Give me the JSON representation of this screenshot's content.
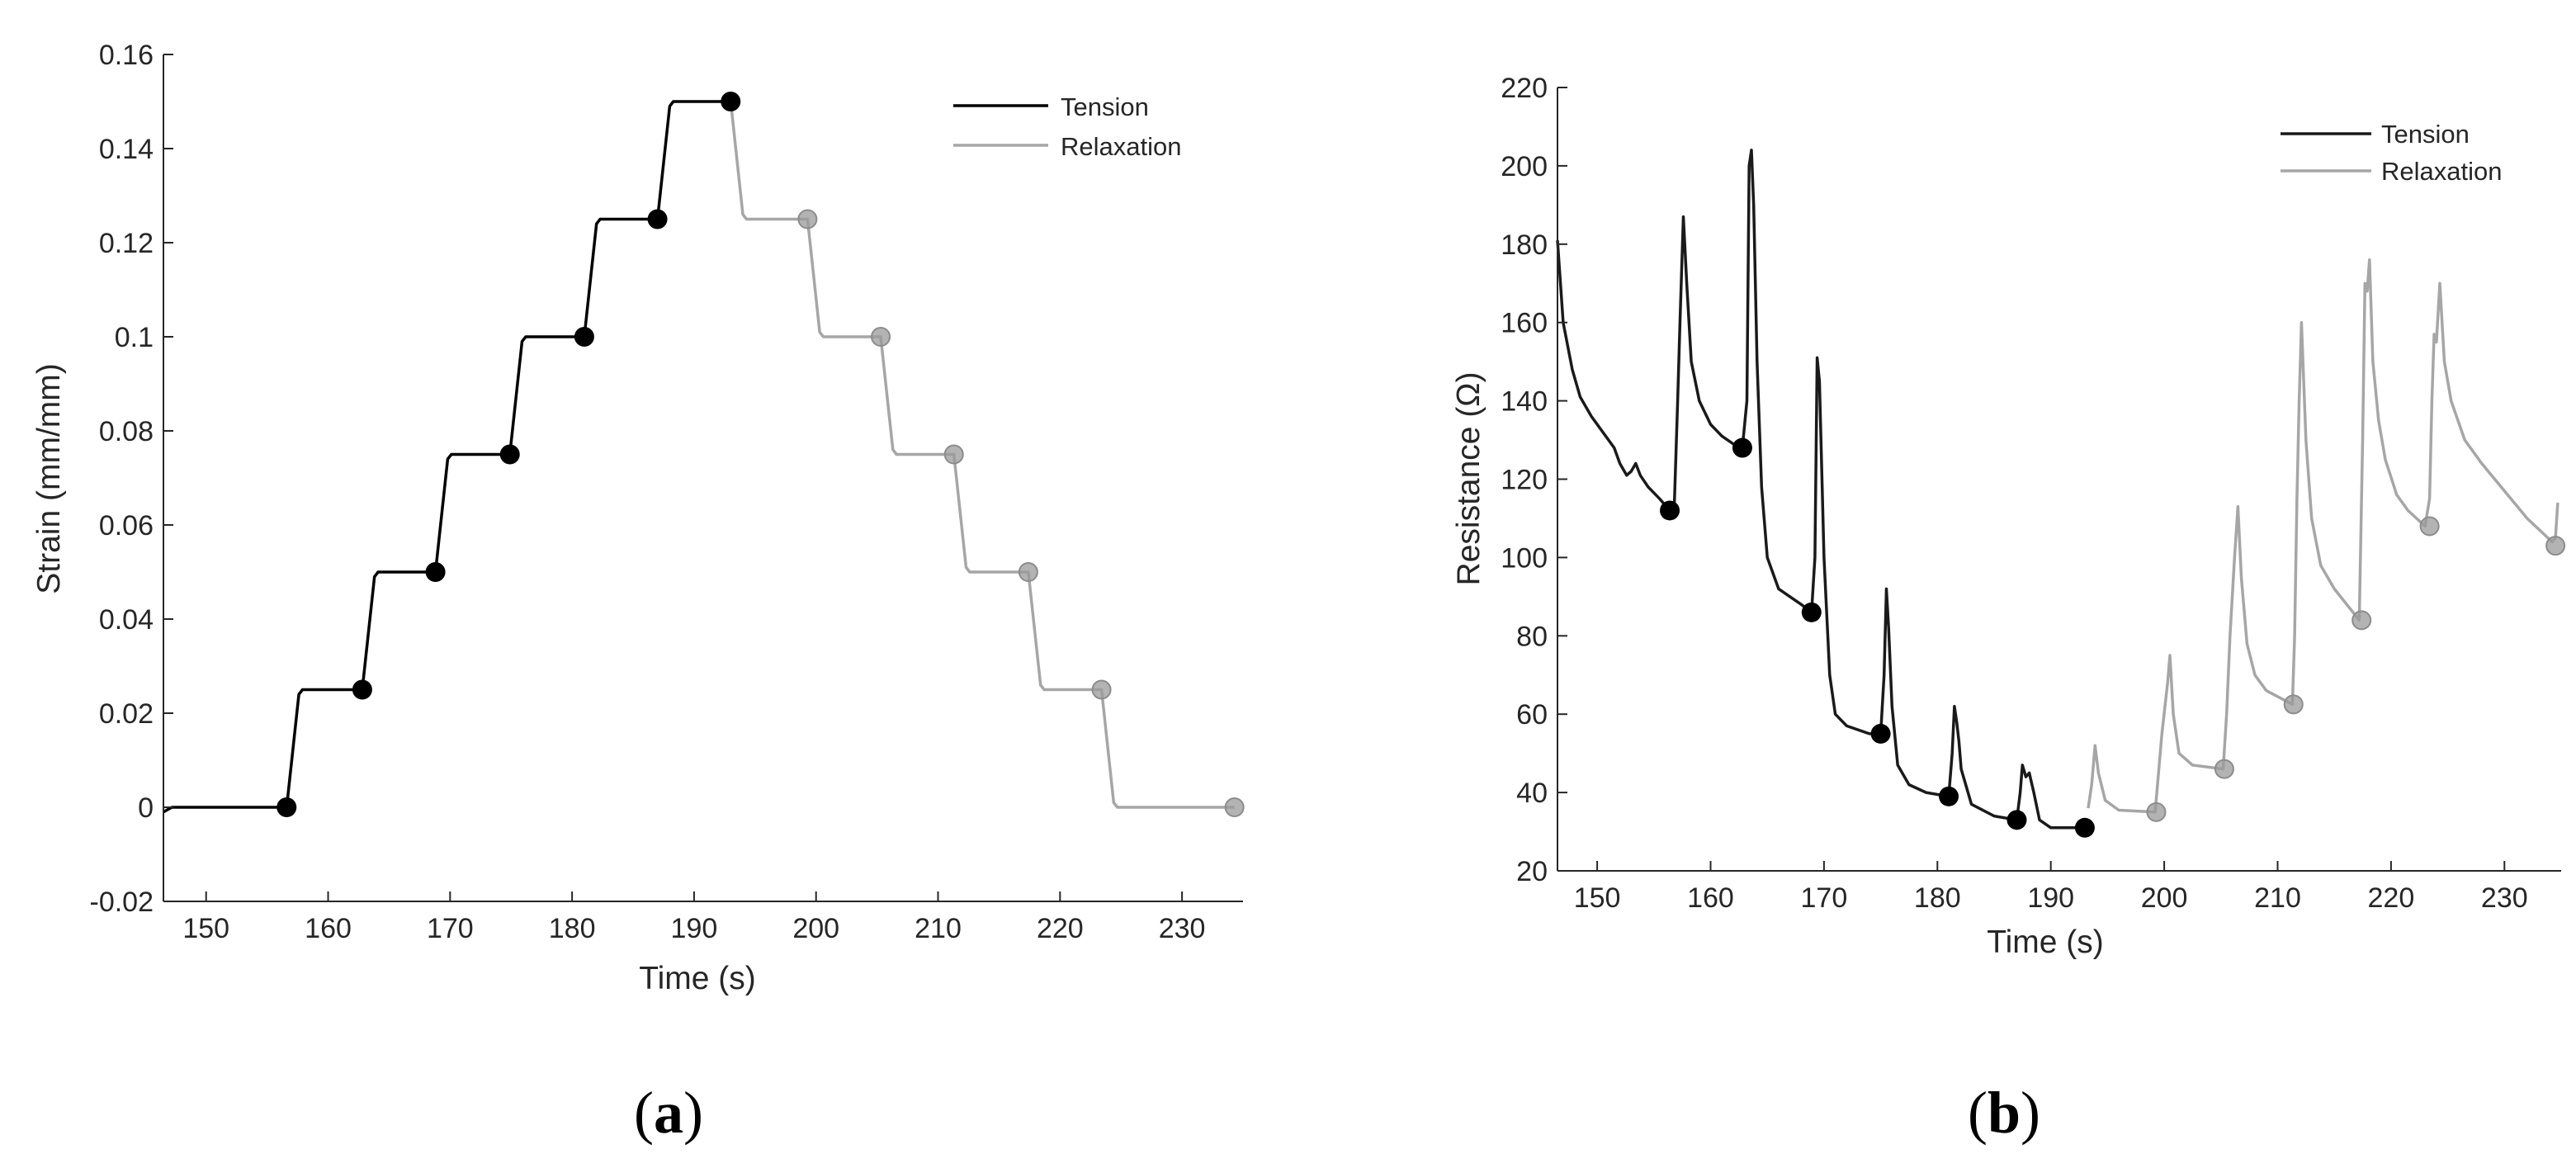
{
  "chart_data": [
    {
      "id": "a",
      "type": "line",
      "caption": {
        "open": "(",
        "letter": "a",
        "close": ")"
      },
      "xlabel": "Time (s)",
      "ylabel": "Strain (mm/mm)",
      "xlim": [
        146.5,
        235
      ],
      "ylim": [
        -0.02,
        0.16
      ],
      "xticks": [
        150,
        160,
        170,
        180,
        190,
        200,
        210,
        220,
        230
      ],
      "yticks": [
        -0.02,
        0,
        0.02,
        0.04,
        0.06,
        0.08,
        0.1,
        0.12,
        0.14,
        0.16
      ],
      "ytick_labels": [
        "-0.02",
        "0",
        "0.02",
        "0.04",
        "0.06",
        "0.08",
        "0.1",
        "0.12",
        "0.14",
        "0.16"
      ],
      "legend": {
        "position": "top-right",
        "entries": [
          "Tension",
          "Relaxation"
        ]
      },
      "colors": {
        "tension": "#000000",
        "relaxation": "#a6a6a6",
        "relaxation_marker": "#999999"
      },
      "series": [
        {
          "name": "Tension",
          "points": [
            [
              146.5,
              -0.001
            ],
            [
              147.2,
              0
            ],
            [
              156.6,
              0
            ],
            [
              157.6,
              0.024
            ],
            [
              157.9,
              0.025
            ],
            [
              162.8,
              0.025
            ],
            [
              163.8,
              0.049
            ],
            [
              164.1,
              0.05
            ],
            [
              168.8,
              0.05
            ],
            [
              169.8,
              0.074
            ],
            [
              170.1,
              0.075
            ],
            [
              174.9,
              0.075
            ],
            [
              175.9,
              0.099
            ],
            [
              176.2,
              0.1
            ],
            [
              181.0,
              0.1
            ],
            [
              182.0,
              0.124
            ],
            [
              182.3,
              0.125
            ],
            [
              187.0,
              0.125
            ],
            [
              188.0,
              0.149
            ],
            [
              188.3,
              0.15
            ],
            [
              193.0,
              0.15
            ]
          ],
          "markers": [
            [
              156.6,
              0
            ],
            [
              162.8,
              0.025
            ],
            [
              168.8,
              0.05
            ],
            [
              174.9,
              0.075
            ],
            [
              181.0,
              0.1
            ],
            [
              187.0,
              0.125
            ],
            [
              193.0,
              0.15
            ]
          ]
        },
        {
          "name": "Relaxation",
          "points": [
            [
              193.0,
              0.15
            ],
            [
              194.0,
              0.126
            ],
            [
              194.3,
              0.125
            ],
            [
              199.3,
              0.125
            ],
            [
              200.3,
              0.101
            ],
            [
              200.6,
              0.1
            ],
            [
              205.3,
              0.1
            ],
            [
              206.3,
              0.076
            ],
            [
              206.6,
              0.075
            ],
            [
              211.3,
              0.075
            ],
            [
              212.3,
              0.051
            ],
            [
              212.6,
              0.05
            ],
            [
              217.4,
              0.05
            ],
            [
              218.4,
              0.026
            ],
            [
              218.7,
              0.025
            ],
            [
              223.4,
              0.025
            ],
            [
              224.4,
              0.001
            ],
            [
              224.7,
              0
            ],
            [
              234.3,
              0
            ]
          ],
          "markers": [
            [
              199.3,
              0.125
            ],
            [
              205.3,
              0.1
            ],
            [
              211.3,
              0.075
            ],
            [
              217.4,
              0.05
            ],
            [
              223.4,
              0.025
            ],
            [
              234.3,
              0
            ]
          ]
        }
      ]
    },
    {
      "id": "b",
      "type": "line",
      "caption": {
        "open": "(",
        "letter": "b",
        "close": ")"
      },
      "xlabel": "Time (s)",
      "ylabel": "Resistance (Ω)",
      "xlim": [
        146.5,
        235
      ],
      "ylim": [
        20,
        220
      ],
      "xticks": [
        150,
        160,
        170,
        180,
        190,
        200,
        210,
        220,
        230
      ],
      "yticks": [
        20,
        40,
        60,
        80,
        100,
        120,
        140,
        160,
        180,
        200,
        220
      ],
      "ytick_labels": [
        "20",
        "40",
        "60",
        "80",
        "100",
        "120",
        "140",
        "160",
        "180",
        "200",
        "220"
      ],
      "legend": {
        "position": "top-right",
        "entries": [
          "Tension",
          "Relaxation"
        ]
      },
      "colors": {
        "tension": "#1a1a1a",
        "relaxation": "#a6a6a6",
        "relaxation_marker": "#999999"
      },
      "series": [
        {
          "name": "Tension",
          "points": [
            [
              146.5,
              181
            ],
            [
              147.0,
              160
            ],
            [
              147.8,
              148
            ],
            [
              148.5,
              141
            ],
            [
              149.5,
              136
            ],
            [
              150.5,
              132
            ],
            [
              151.5,
              128
            ],
            [
              152.0,
              124
            ],
            [
              152.6,
              121
            ],
            [
              153.0,
              122
            ],
            [
              153.4,
              124
            ],
            [
              153.8,
              121
            ],
            [
              154.5,
              118
            ],
            [
              155.5,
              115
            ],
            [
              156.4,
              112
            ],
            [
              156.8,
              113
            ],
            [
              157.1,
              140
            ],
            [
              157.3,
              160
            ],
            [
              157.6,
              187
            ],
            [
              157.9,
              170
            ],
            [
              158.3,
              150
            ],
            [
              159.0,
              140
            ],
            [
              160.0,
              134
            ],
            [
              161.0,
              131
            ],
            [
              162.0,
              129
            ],
            [
              162.8,
              128
            ],
            [
              163.2,
              140
            ],
            [
              163.4,
              200
            ],
            [
              163.6,
              204
            ],
            [
              163.8,
              190
            ],
            [
              164.1,
              150
            ],
            [
              164.5,
              118
            ],
            [
              165.0,
              100
            ],
            [
              166.0,
              92
            ],
            [
              167.0,
              90
            ],
            [
              168.0,
              88
            ],
            [
              168.9,
              86
            ],
            [
              169.2,
              100
            ],
            [
              169.4,
              151
            ],
            [
              169.6,
              145
            ],
            [
              170.0,
              100
            ],
            [
              170.5,
              70
            ],
            [
              171.0,
              60
            ],
            [
              172.0,
              57
            ],
            [
              174.0,
              55
            ],
            [
              175.0,
              55
            ],
            [
              175.3,
              70
            ],
            [
              175.5,
              92
            ],
            [
              175.7,
              82
            ],
            [
              176.0,
              62
            ],
            [
              176.5,
              47
            ],
            [
              177.5,
              42
            ],
            [
              179.0,
              40
            ],
            [
              181.0,
              39
            ],
            [
              181.3,
              50
            ],
            [
              181.5,
              62
            ],
            [
              181.7,
              58
            ],
            [
              181.9,
              53
            ],
            [
              182.1,
              46
            ],
            [
              183.0,
              37
            ],
            [
              185.0,
              34
            ],
            [
              187.0,
              33
            ],
            [
              187.3,
              40
            ],
            [
              187.5,
              47
            ],
            [
              187.8,
              44
            ],
            [
              188.1,
              45
            ],
            [
              188.5,
              40
            ],
            [
              189.0,
              33
            ],
            [
              190.0,
              31
            ],
            [
              193.0,
              31
            ]
          ],
          "markers": [
            [
              156.4,
              112
            ],
            [
              162.8,
              128
            ],
            [
              168.9,
              86
            ],
            [
              175.0,
              55
            ],
            [
              181.0,
              39
            ],
            [
              187.0,
              33
            ],
            [
              193.0,
              31
            ]
          ]
        },
        {
          "name": "Relaxation",
          "points": [
            [
              193.3,
              36
            ],
            [
              193.6,
              42
            ],
            [
              193.9,
              52
            ],
            [
              194.2,
              45
            ],
            [
              194.8,
              38
            ],
            [
              196.0,
              35.5
            ],
            [
              199.2,
              35
            ],
            [
              199.5,
              45
            ],
            [
              199.8,
              55
            ],
            [
              200.3,
              68
            ],
            [
              200.5,
              75
            ],
            [
              200.8,
              60
            ],
            [
              201.3,
              50
            ],
            [
              202.5,
              47
            ],
            [
              205.2,
              46
            ],
            [
              205.5,
              60
            ],
            [
              205.8,
              80
            ],
            [
              206.2,
              100
            ],
            [
              206.5,
              113
            ],
            [
              206.8,
              95
            ],
            [
              207.3,
              78
            ],
            [
              208.0,
              70
            ],
            [
              209.0,
              66
            ],
            [
              211.3,
              62.5
            ],
            [
              211.5,
              80
            ],
            [
              211.7,
              115
            ],
            [
              211.9,
              140
            ],
            [
              212.1,
              160
            ],
            [
              212.5,
              130
            ],
            [
              213.0,
              110
            ],
            [
              213.8,
              98
            ],
            [
              215.0,
              92
            ],
            [
              217.2,
              84
            ],
            [
              217.5,
              130
            ],
            [
              217.7,
              170
            ],
            [
              217.9,
              168
            ],
            [
              218.1,
              176
            ],
            [
              218.4,
              150
            ],
            [
              218.9,
              135
            ],
            [
              219.5,
              125
            ],
            [
              220.5,
              116
            ],
            [
              221.5,
              112
            ],
            [
              223.0,
              108
            ],
            [
              223.4,
              115
            ],
            [
              223.6,
              140
            ],
            [
              223.8,
              157
            ],
            [
              224.0,
              155
            ],
            [
              224.3,
              170
            ],
            [
              224.7,
              150
            ],
            [
              225.3,
              140
            ],
            [
              226.5,
              130
            ],
            [
              228.0,
              124
            ],
            [
              230.0,
              117
            ],
            [
              232.0,
              110
            ],
            [
              234.2,
              104
            ],
            [
              234.5,
              105
            ],
            [
              234.7,
              114
            ]
          ],
          "markers": [
            [
              199.3,
              35
            ],
            [
              205.3,
              46
            ],
            [
              211.4,
              62.5
            ],
            [
              217.4,
              84
            ],
            [
              223.4,
              108
            ],
            [
              234.5,
              103
            ]
          ]
        }
      ]
    }
  ]
}
